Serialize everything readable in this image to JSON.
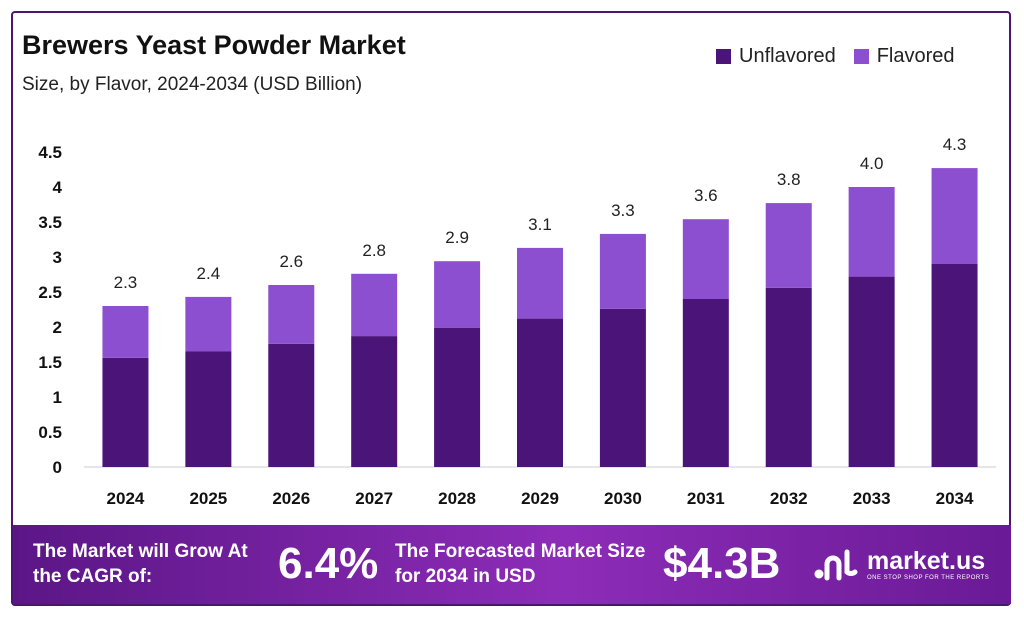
{
  "title": "Brewers Yeast Powder Market",
  "subtitle": "Size, by Flavor, 2024-2034 (USD Billion)",
  "legend": [
    {
      "label": "Unflavored",
      "color": "#4a1478"
    },
    {
      "label": "Flavored",
      "color": "#8b4fcf"
    }
  ],
  "chart_data": {
    "type": "bar",
    "stacked": true,
    "title": "Brewers Yeast Powder Market",
    "subtitle": "Size, by Flavor, 2024-2034 (USD Billion)",
    "categories": [
      "2024",
      "2025",
      "2026",
      "2027",
      "2028",
      "2029",
      "2030",
      "2031",
      "2032",
      "2033",
      "2034"
    ],
    "series": [
      {
        "name": "Unflavored",
        "color": "#4a1478",
        "values": [
          1.56,
          1.65,
          1.76,
          1.87,
          1.99,
          2.12,
          2.26,
          2.4,
          2.56,
          2.72,
          2.9
        ]
      },
      {
        "name": "Flavored",
        "color": "#8b4fcf",
        "values": [
          0.74,
          0.78,
          0.84,
          0.89,
          0.95,
          1.01,
          1.07,
          1.14,
          1.21,
          1.28,
          1.37
        ]
      }
    ],
    "total_labels": [
      "2.3",
      "2.4",
      "2.6",
      "2.8",
      "2.9",
      "3.1",
      "3.3",
      "3.6",
      "3.8",
      "4.0",
      "4.3"
    ],
    "y_ticks": [
      "0",
      "0.5",
      "1",
      "1.5",
      "2",
      "2.5",
      "3",
      "3.5",
      "4",
      "4.5"
    ],
    "ylim": [
      0,
      4.5
    ],
    "xlabel": "",
    "ylabel": "",
    "grid": false,
    "legend_position": "top-right"
  },
  "footer": {
    "cagr_label": "The Market will Grow At the CAGR of:",
    "cagr_value": "6.4%",
    "size_label": "The Forecasted Market Size for 2034 in USD",
    "size_value": "$4.3B",
    "brand_name": "market.us",
    "brand_tagline": "ONE STOP SHOP FOR THE REPORTS"
  }
}
